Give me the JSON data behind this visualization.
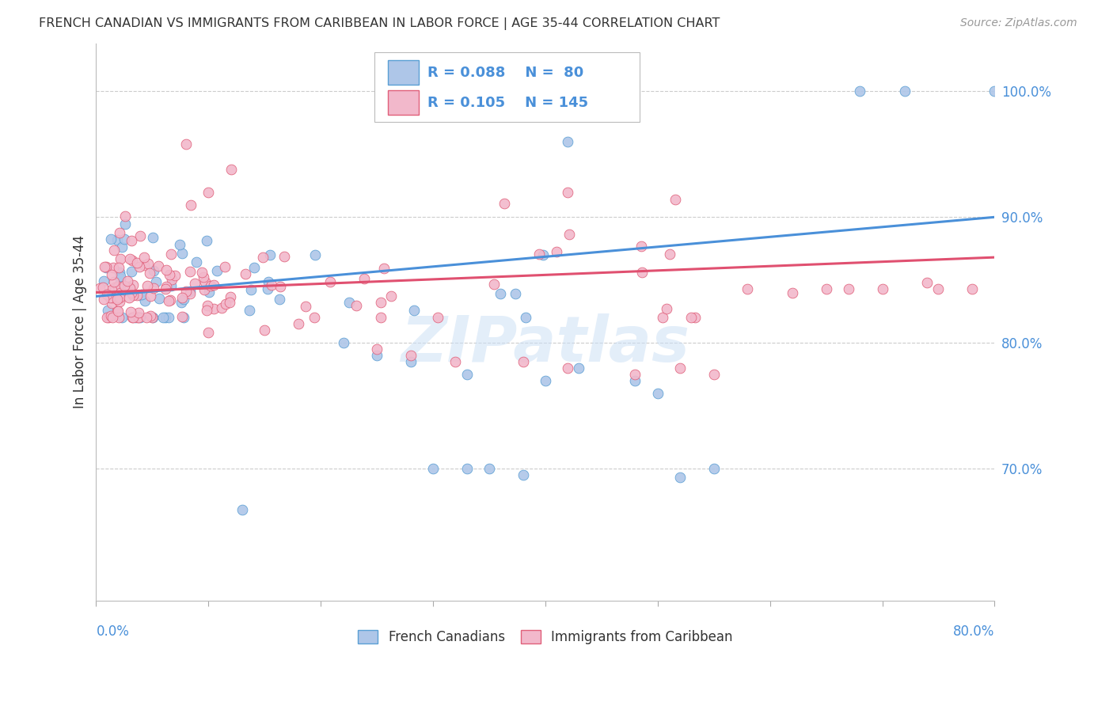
{
  "title": "FRENCH CANADIAN VS IMMIGRANTS FROM CARIBBEAN IN LABOR FORCE | AGE 35-44 CORRELATION CHART",
  "source": "Source: ZipAtlas.com",
  "ylabel": "In Labor Force | Age 35-44",
  "x_min": 0.0,
  "x_max": 0.8,
  "y_min": 0.595,
  "y_max": 1.038,
  "blue_R": 0.088,
  "blue_N": 80,
  "pink_R": 0.105,
  "pink_N": 145,
  "blue_color": "#aec6e8",
  "pink_color": "#f2b8cb",
  "blue_edge_color": "#5a9fd4",
  "pink_edge_color": "#e0607a",
  "blue_line_color": "#4a90d9",
  "pink_line_color": "#e05070",
  "legend_label_blue": "French Canadians",
  "legend_label_pink": "Immigrants from Caribbean",
  "title_color": "#333333",
  "axis_color": "#4a90d9",
  "watermark": "ZIPatlas",
  "blue_trend_x0": 0.0,
  "blue_trend_y0": 0.837,
  "blue_trend_x1": 0.8,
  "blue_trend_y1": 0.9,
  "pink_trend_x0": 0.0,
  "pink_trend_y0": 0.84,
  "pink_trend_x1": 0.8,
  "pink_trend_y1": 0.868
}
